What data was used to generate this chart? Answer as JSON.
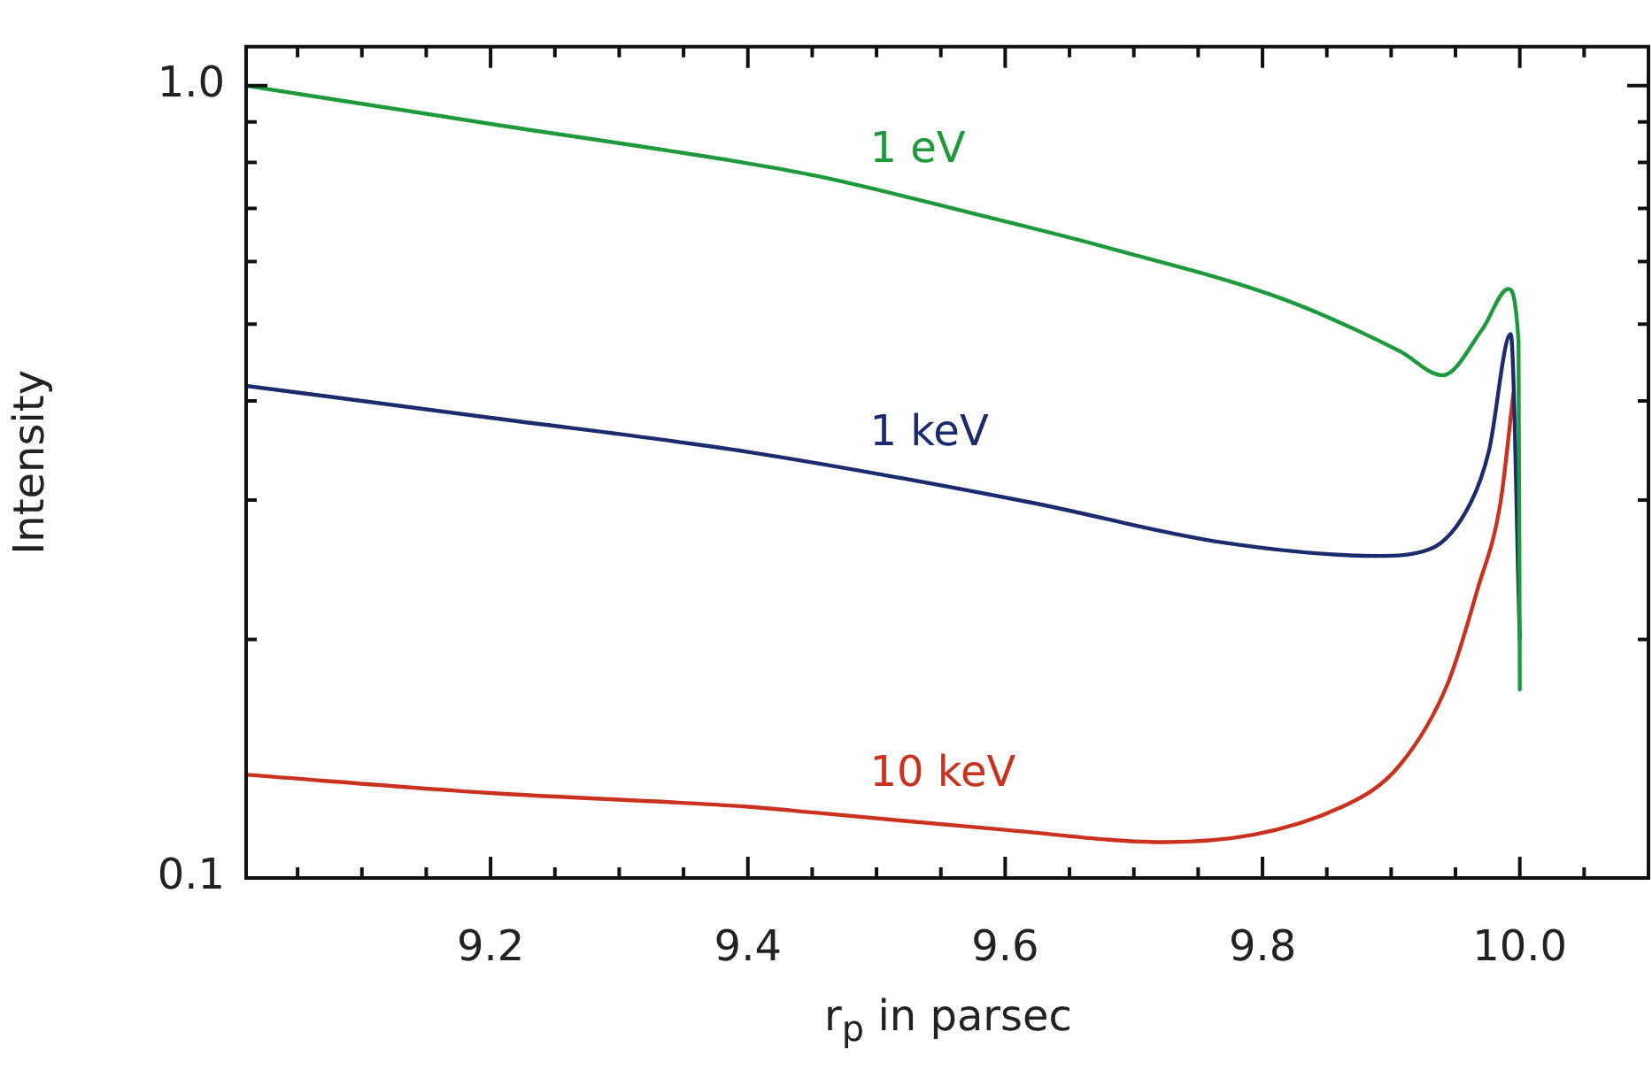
{
  "chart_data": {
    "type": "line",
    "xlabel": "r$_{p}$ in parsec",
    "ylabel": "Intensity",
    "log": "y",
    "grid": false,
    "legend": false,
    "marker": "none",
    "line_style": "solid",
    "xlim": [
      9.01,
      10.1
    ],
    "ylim": [
      0.1,
      1.12
    ],
    "xticks": [
      {
        "value": 9.05,
        "label": null
      },
      {
        "value": 9.1,
        "label": null
      },
      {
        "value": 9.15,
        "label": null
      },
      9.2,
      {
        "value": 9.25,
        "label": null
      },
      {
        "value": 9.3,
        "label": null
      },
      {
        "value": 9.35,
        "label": null
      },
      9.4,
      {
        "value": 9.45,
        "label": null
      },
      {
        "value": 9.5,
        "label": null
      },
      {
        "value": 9.55,
        "label": null
      },
      9.6,
      {
        "value": 9.65,
        "label": null
      },
      {
        "value": 9.7,
        "label": null
      },
      {
        "value": 9.75,
        "label": null
      },
      9.8,
      {
        "value": 9.85,
        "label": null
      },
      {
        "value": 9.9,
        "label": null
      },
      {
        "value": 9.95,
        "label": null
      },
      {
        "value": 10,
        "label": "10.0"
      },
      {
        "value": 10.05,
        "label": null
      }
    ],
    "yticks": [
      0.1,
      {
        "value": 0.2,
        "label": null
      },
      {
        "value": 0.3,
        "label": null
      },
      {
        "value": 0.4,
        "label": null
      },
      {
        "value": 0.5,
        "label": null
      },
      {
        "value": 0.6,
        "label": null
      },
      {
        "value": 0.7,
        "label": null
      },
      {
        "value": 0.8,
        "label": null
      },
      {
        "value": 0.9,
        "label": null
      },
      {
        "value": 1,
        "label": "1.0"
      }
    ],
    "series": [
      {
        "name": "1 eV",
        "color": "#1e9a3c",
        "x": [
          9.01,
          9.2,
          9.4,
          9.454,
          9.6,
          9.679,
          9.816,
          9.907,
          9.94,
          9.971,
          9.991,
          9.999,
          10.0
        ],
        "values": [
          1.0,
          0.895,
          0.798,
          0.769,
          0.674,
          0.625,
          0.538,
          0.462,
          0.431,
          0.493,
          0.554,
          0.476,
          0.173
        ]
      },
      {
        "name": "1 keV",
        "color": "#1c2a6e",
        "x": [
          9.01,
          9.2,
          9.4,
          9.619,
          9.77,
          9.889,
          9.93,
          9.962,
          9.976,
          9.993,
          10.0
        ],
        "values": [
          0.418,
          0.381,
          0.345,
          0.298,
          0.265,
          0.255,
          0.26,
          0.298,
          0.346,
          0.486,
          0.2
        ]
      },
      {
        "name": "10 keV",
        "color": "#c8321e",
        "x": [
          9.01,
          9.2,
          9.4,
          9.45,
          9.6,
          9.724,
          9.862,
          9.907,
          9.944,
          9.967,
          9.985,
          9.995
        ],
        "values": [
          0.135,
          0.128,
          0.123,
          0.121,
          0.115,
          0.111,
          0.123,
          0.139,
          0.176,
          0.231,
          0.298,
          0.409
        ]
      }
    ]
  }
}
